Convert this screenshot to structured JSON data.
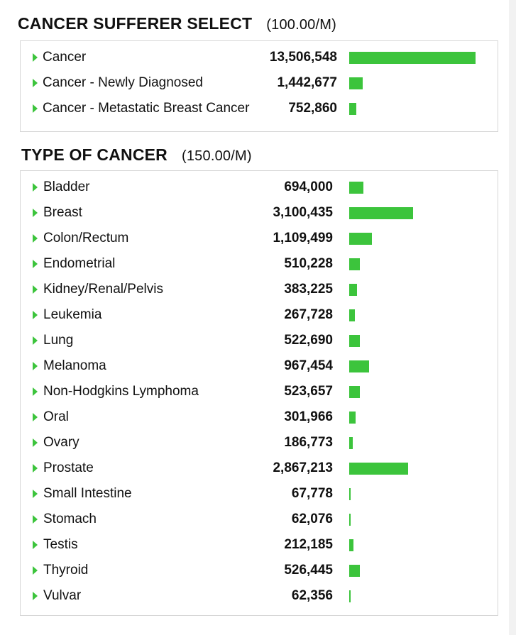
{
  "sections": [
    {
      "title": "CANCER SUFFERER SELECT",
      "price": "(100.00/M)",
      "items": [
        {
          "label": "Cancer",
          "count": "13,506,548",
          "value": 13506548
        },
        {
          "label": "Cancer - Newly Diagnosed",
          "count": "1,442,677",
          "value": 1442677
        },
        {
          "label": "Cancer - Metastatic Breast Cancer",
          "count": "752,860",
          "value": 752860
        }
      ]
    },
    {
      "title": "TYPE OF CANCER",
      "price": "(150.00/M)",
      "items": [
        {
          "label": "Bladder",
          "count": "694,000",
          "value": 694000
        },
        {
          "label": "Breast",
          "count": "3,100,435",
          "value": 3100435
        },
        {
          "label": "Colon/Rectum",
          "count": "1,109,499",
          "value": 1109499
        },
        {
          "label": "Endometrial",
          "count": "510,228",
          "value": 510228
        },
        {
          "label": "Kidney/Renal/Pelvis",
          "count": "383,225",
          "value": 383225
        },
        {
          "label": "Leukemia",
          "count": "267,728",
          "value": 267728
        },
        {
          "label": "Lung",
          "count": "522,690",
          "value": 522690
        },
        {
          "label": "Melanoma",
          "count": "967,454",
          "value": 967454
        },
        {
          "label": "Non-Hodgkins Lymphoma",
          "count": "523,657",
          "value": 523657
        },
        {
          "label": "Oral",
          "count": "301,966",
          "value": 301966
        },
        {
          "label": "Ovary",
          "count": "186,773",
          "value": 186773
        },
        {
          "label": "Prostate",
          "count": "2,867,213",
          "value": 2867213
        },
        {
          "label": "Small Intestine",
          "count": "67,778",
          "value": 67778
        },
        {
          "label": "Stomach",
          "count": "62,076",
          "value": 62076
        },
        {
          "label": "Testis",
          "count": "212,185",
          "value": 212185
        },
        {
          "label": "Thyroid",
          "count": "526,445",
          "value": 526445
        },
        {
          "label": "Vulvar",
          "count": "62,356",
          "value": 62356
        }
      ]
    }
  ],
  "colors": {
    "bar": "#3cc43c",
    "bullet": "#3cc43c"
  }
}
